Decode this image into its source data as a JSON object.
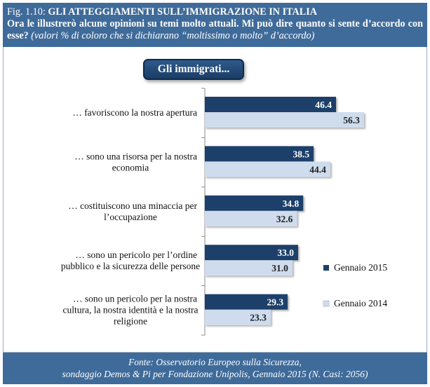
{
  "header": {
    "fig_number": "Fig. 1.10:",
    "title": "GLI ATTEGGIAMENTI SULL’IMMIGRAZIONE IN ITALIA",
    "question": "Ora le illustrerò alcune opinioni su temi molto attuali. Mi può dire quanto si sente d’accordo con esse?",
    "note": "(valori % di coloro che si dichiarano “moltissimo o molto” d’accordo)"
  },
  "pill_label": "Gli immigrati...",
  "footer": {
    "line1": "Fonte: Osservatorio Europeo sulla Sicurezza,",
    "line2": "sondaggio Demos & Pi per Fondazione Unipolis, Gennaio 2015 (N. Casi: 2056)"
  },
  "colors": {
    "header_bg": "#3f6b9a",
    "series_2015": "#1f3f6a",
    "series_2014": "#cfdcee"
  },
  "chart_data": {
    "type": "bar",
    "orientation": "horizontal",
    "categories": [
      [
        "… favoriscono la nostra apertura"
      ],
      [
        "… sono una risorsa per la nostra",
        "economia"
      ],
      [
        "… costituiscono una minaccia per",
        "l’occupazione"
      ],
      [
        "… sono un pericolo per l’ordine",
        "pubblico e la sicurezza delle persone"
      ],
      [
        "… sono un pericolo per la nostra",
        "cultura, la nostra identità e la nostra",
        "religione"
      ]
    ],
    "series": [
      {
        "name": "Gennaio 2015",
        "values": [
          46.4,
          38.5,
          34.8,
          33.0,
          29.3
        ],
        "labels": [
          "46.4",
          "38.5",
          "34.8",
          "33.0",
          "29.3"
        ]
      },
      {
        "name": "Gennaio 2014",
        "values": [
          56.3,
          44.4,
          32.6,
          31.0,
          23.3
        ],
        "labels": [
          "56.3",
          "44.4",
          "32.6",
          "31.0",
          "23.3"
        ]
      }
    ],
    "xlim": [
      0,
      60
    ],
    "legend_position": "right"
  }
}
